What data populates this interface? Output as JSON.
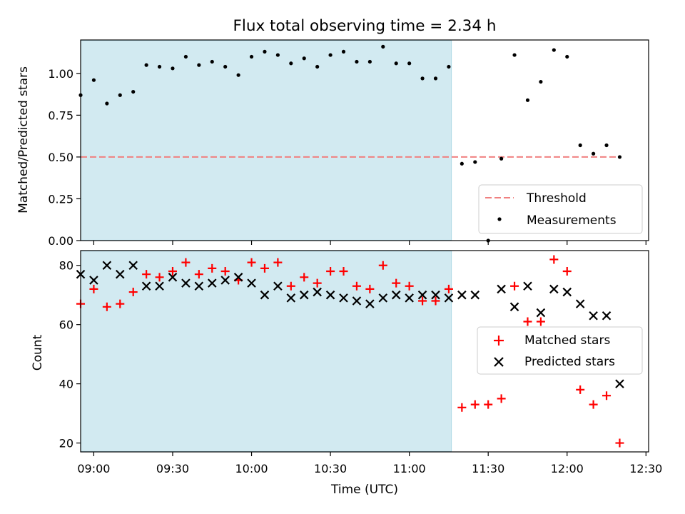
{
  "figure": {
    "title": "Flux total observing time = 2.34 h"
  },
  "chart_data": [
    {
      "type": "scatter",
      "ylabel": "Matched/Predicted stars",
      "xlabel": "",
      "xlim": [
        "08:55",
        "12:31"
      ],
      "ylim": [
        0,
        1.2
      ],
      "yticks": [
        "0.00",
        "0.25",
        "0.50",
        "0.75",
        "1.00"
      ],
      "grid": false,
      "legend_position": "lower-right",
      "shaded_region": {
        "from": "08:55",
        "to": "11:16",
        "color": "#add8e6"
      },
      "threshold": {
        "name": "Threshold",
        "value": 0.5,
        "color": "#f08080",
        "style": "dashed"
      },
      "series": [
        {
          "name": "Measurements",
          "marker": "dot",
          "color": "#000000",
          "points": [
            [
              "08:55",
              0.87
            ],
            [
              "09:00",
              0.96
            ],
            [
              "09:05",
              0.82
            ],
            [
              "09:10",
              0.87
            ],
            [
              "09:15",
              0.89
            ],
            [
              "09:20",
              1.05
            ],
            [
              "09:25",
              1.04
            ],
            [
              "09:30",
              1.03
            ],
            [
              "09:35",
              1.1
            ],
            [
              "09:40",
              1.05
            ],
            [
              "09:45",
              1.07
            ],
            [
              "09:50",
              1.04
            ],
            [
              "09:55",
              0.99
            ],
            [
              "10:00",
              1.1
            ],
            [
              "10:05",
              1.13
            ],
            [
              "10:10",
              1.11
            ],
            [
              "10:15",
              1.06
            ],
            [
              "10:20",
              1.09
            ],
            [
              "10:25",
              1.04
            ],
            [
              "10:30",
              1.11
            ],
            [
              "10:35",
              1.13
            ],
            [
              "10:40",
              1.07
            ],
            [
              "10:45",
              1.07
            ],
            [
              "10:50",
              1.16
            ],
            [
              "10:55",
              1.06
            ],
            [
              "11:00",
              1.06
            ],
            [
              "11:05",
              0.97
            ],
            [
              "11:10",
              0.97
            ],
            [
              "11:15",
              1.04
            ],
            [
              "11:20",
              0.46
            ],
            [
              "11:25",
              0.47
            ],
            [
              "11:30",
              0.0
            ],
            [
              "11:35",
              0.49
            ],
            [
              "11:40",
              1.11
            ],
            [
              "11:45",
              0.84
            ],
            [
              "11:50",
              0.95
            ],
            [
              "11:55",
              1.14
            ],
            [
              "12:00",
              1.1
            ],
            [
              "12:05",
              0.57
            ],
            [
              "12:10",
              0.52
            ],
            [
              "12:15",
              0.57
            ],
            [
              "12:20",
              0.5
            ]
          ]
        }
      ]
    },
    {
      "type": "scatter",
      "ylabel": "Count",
      "xlabel": "Time (UTC)",
      "xlim": [
        "08:55",
        "12:31"
      ],
      "ylim": [
        17,
        85
      ],
      "yticks": [
        "20",
        "40",
        "60",
        "80"
      ],
      "xticks": [
        "09:00",
        "09:30",
        "10:00",
        "10:30",
        "11:00",
        "11:30",
        "12:00",
        "12:30"
      ],
      "grid": false,
      "legend_position": "center-right",
      "shaded_region": {
        "from": "08:55",
        "to": "11:16",
        "color": "#add8e6"
      },
      "series": [
        {
          "name": "Matched stars",
          "marker": "plus",
          "color": "#ff0000",
          "points": [
            [
              "08:55",
              67
            ],
            [
              "09:00",
              72
            ],
            [
              "09:05",
              66
            ],
            [
              "09:10",
              67
            ],
            [
              "09:15",
              71
            ],
            [
              "09:20",
              77
            ],
            [
              "09:25",
              76
            ],
            [
              "09:30",
              78
            ],
            [
              "09:35",
              81
            ],
            [
              "09:40",
              77
            ],
            [
              "09:45",
              79
            ],
            [
              "09:50",
              78
            ],
            [
              "09:55",
              75
            ],
            [
              "10:00",
              81
            ],
            [
              "10:05",
              79
            ],
            [
              "10:10",
              81
            ],
            [
              "10:15",
              73
            ],
            [
              "10:20",
              76
            ],
            [
              "10:25",
              74
            ],
            [
              "10:30",
              78
            ],
            [
              "10:35",
              78
            ],
            [
              "10:40",
              73
            ],
            [
              "10:45",
              72
            ],
            [
              "10:50",
              80
            ],
            [
              "10:55",
              74
            ],
            [
              "11:00",
              73
            ],
            [
              "11:05",
              68
            ],
            [
              "11:10",
              68
            ],
            [
              "11:15",
              72
            ],
            [
              "11:20",
              32
            ],
            [
              "11:25",
              33
            ],
            [
              "11:30",
              33
            ],
            [
              "11:35",
              35
            ],
            [
              "11:40",
              73
            ],
            [
              "11:45",
              61
            ],
            [
              "11:50",
              61
            ],
            [
              "11:55",
              82
            ],
            [
              "12:00",
              78
            ],
            [
              "12:05",
              38
            ],
            [
              "12:10",
              33
            ],
            [
              "12:15",
              36
            ],
            [
              "12:20",
              20
            ]
          ]
        },
        {
          "name": "Predicted stars",
          "marker": "x",
          "color": "#000000",
          "points": [
            [
              "08:55",
              77
            ],
            [
              "09:00",
              75
            ],
            [
              "09:05",
              80
            ],
            [
              "09:10",
              77
            ],
            [
              "09:15",
              80
            ],
            [
              "09:20",
              73
            ],
            [
              "09:25",
              73
            ],
            [
              "09:30",
              76
            ],
            [
              "09:35",
              74
            ],
            [
              "09:40",
              73
            ],
            [
              "09:45",
              74
            ],
            [
              "09:50",
              75
            ],
            [
              "09:55",
              76
            ],
            [
              "10:00",
              74
            ],
            [
              "10:05",
              70
            ],
            [
              "10:10",
              73
            ],
            [
              "10:15",
              69
            ],
            [
              "10:20",
              70
            ],
            [
              "10:25",
              71
            ],
            [
              "10:30",
              70
            ],
            [
              "10:35",
              69
            ],
            [
              "10:40",
              68
            ],
            [
              "10:45",
              67
            ],
            [
              "10:50",
              69
            ],
            [
              "10:55",
              70
            ],
            [
              "11:00",
              69
            ],
            [
              "11:05",
              70
            ],
            [
              "11:10",
              70
            ],
            [
              "11:15",
              69
            ],
            [
              "11:20",
              70
            ],
            [
              "11:25",
              70
            ],
            [
              "11:35",
              72
            ],
            [
              "11:40",
              66
            ],
            [
              "11:45",
              73
            ],
            [
              "11:50",
              64
            ],
            [
              "11:55",
              72
            ],
            [
              "12:00",
              71
            ],
            [
              "12:05",
              67
            ],
            [
              "12:10",
              63
            ],
            [
              "12:15",
              63
            ],
            [
              "12:20",
              40
            ]
          ]
        }
      ]
    }
  ]
}
